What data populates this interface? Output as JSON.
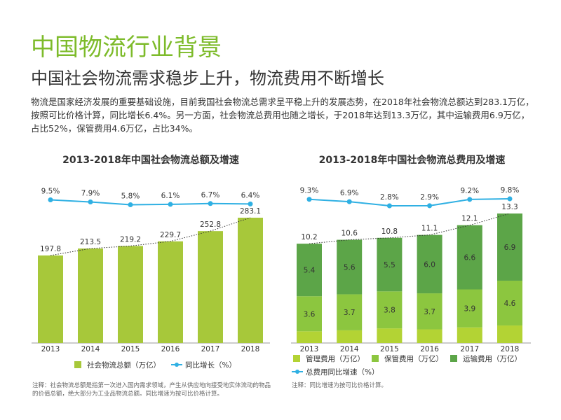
{
  "header": {
    "title": "中国物流行业背景",
    "subtitle": "中国社会物流需求稳步上升，物流费用不断增长",
    "body": "物流是国家经济发展的重要基础设施，目前我国社会物流总需求呈平稳上升的发展态势，在2018年社会物流总额达到283.1万亿，按照可比价格计算，同比增长6.4%。另一方面，社会物流总费用也随之增长，于2018年达到13.3万亿，其中运输费用6.9万亿，占比52%，保管费用4.6万亿，占比34%。"
  },
  "chart_data": [
    {
      "type": "bar",
      "title": "2013-2018年中国社会物流总额及增速",
      "categories": [
        "2013",
        "2014",
        "2015",
        "2016",
        "2017",
        "2018"
      ],
      "series": [
        {
          "name": "社会物流总额（万亿）",
          "color": "#a7c83a",
          "values": [
            197.8,
            213.5,
            219.2,
            229.7,
            252.8,
            283.1
          ]
        },
        {
          "name": "同比增长（%）",
          "type": "line",
          "color": "#2fb0e3",
          "values": [
            9.5,
            7.9,
            5.8,
            6.1,
            6.7,
            6.4
          ],
          "value_labels": [
            "9.5%",
            "7.9%",
            "5.8%",
            "6.1%",
            "6.7%",
            "6.4%"
          ]
        }
      ],
      "note": "注释：社会物流总额是指第一次进入国内需求领域，产生从供应地向接受地实体流动的物品的价值总额，绝大部分为工业品物流总额。同比增速为按可比价格计算。"
    },
    {
      "type": "stacked",
      "title": "2013-2018年中国社会物流总费用及增速",
      "categories": [
        "2013",
        "2014",
        "2015",
        "2016",
        "2017",
        "2018"
      ],
      "series": [
        {
          "name": "管理费用（万亿）",
          "color": "#b3d334",
          "values": [
            1.2,
            1.3,
            1.5,
            1.4,
            1.6,
            1.8
          ]
        },
        {
          "name": "保管费用（万亿）",
          "color": "#8cc63f",
          "values": [
            3.6,
            3.7,
            3.8,
            3.7,
            3.9,
            4.6
          ]
        },
        {
          "name": "运输费用（万亿）",
          "color": "#5ca548",
          "values": [
            5.4,
            5.6,
            5.5,
            6.0,
            6.6,
            6.9
          ],
          "value_labels": [
            "5.4",
            "5.6",
            "5.5",
            "6.0",
            "6.6",
            "6.9"
          ]
        },
        {
          "name": "总费用同比增速（%）",
          "type": "line",
          "color": "#2fb0e3",
          "values": [
            9.3,
            6.9,
            2.8,
            2.9,
            9.2,
            9.8
          ],
          "value_labels": [
            "9.3%",
            "6.9%",
            "2.8%",
            "2.9%",
            "9.2%",
            "9.8%"
          ]
        }
      ],
      "totals": [
        10.2,
        10.6,
        10.8,
        11.1,
        12.1,
        13.3
      ],
      "note": "注释：同比增速为按可比价格计算。"
    }
  ]
}
